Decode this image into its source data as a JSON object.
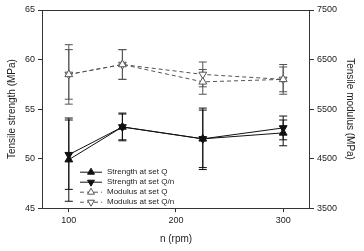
{
  "chart_data": {
    "type": "line",
    "x_label": "n (rpm)",
    "y_label": "Tensile strength (MPa)",
    "y2_label": "Tensile modulus (MPa)",
    "x": [
      100,
      150,
      225,
      300
    ],
    "xlim": [
      75,
      325
    ],
    "xticks": [
      100,
      200,
      300
    ],
    "ylim": [
      45,
      65
    ],
    "yticks": [
      45,
      50,
      55,
      60,
      65
    ],
    "y2lim": [
      3500,
      7500
    ],
    "y2ticks": [
      3500,
      4500,
      5500,
      6500,
      7500
    ],
    "grid": false,
    "legend": "lower left",
    "series": [
      {
        "name": "Strength at set Q",
        "color": "#111111",
        "marker": "triangle",
        "line_style": "solid",
        "values": [
          49.9,
          53.2,
          52.0,
          52.6
        ],
        "errors": [
          4.2,
          1.4,
          3.1,
          1.3
        ]
      },
      {
        "name": "Strength at set Q/n",
        "color": "#111111",
        "marker": "triangle_down",
        "line_style": "solid",
        "values": [
          50.4,
          53.2,
          52.0,
          53.1
        ],
        "errors": [
          3.5,
          1.3,
          2.9,
          1.2
        ]
      },
      {
        "name": "Modulus at set Q",
        "color": "#555555",
        "marker": "open_triangle",
        "line_style": "dashed",
        "axis": "y2",
        "values": [
          6200,
          6400,
          6050,
          6100
        ],
        "errors": [
          600,
          300,
          250,
          300
        ]
      },
      {
        "name": "Modulus at set Q/n",
        "color": "#555555",
        "marker": "open_triangle_down",
        "line_style": "dashed",
        "axis": "y2",
        "values": [
          6200,
          6400,
          6200,
          6100
        ],
        "errors": [
          500,
          300,
          250,
          250
        ]
      }
    ]
  }
}
